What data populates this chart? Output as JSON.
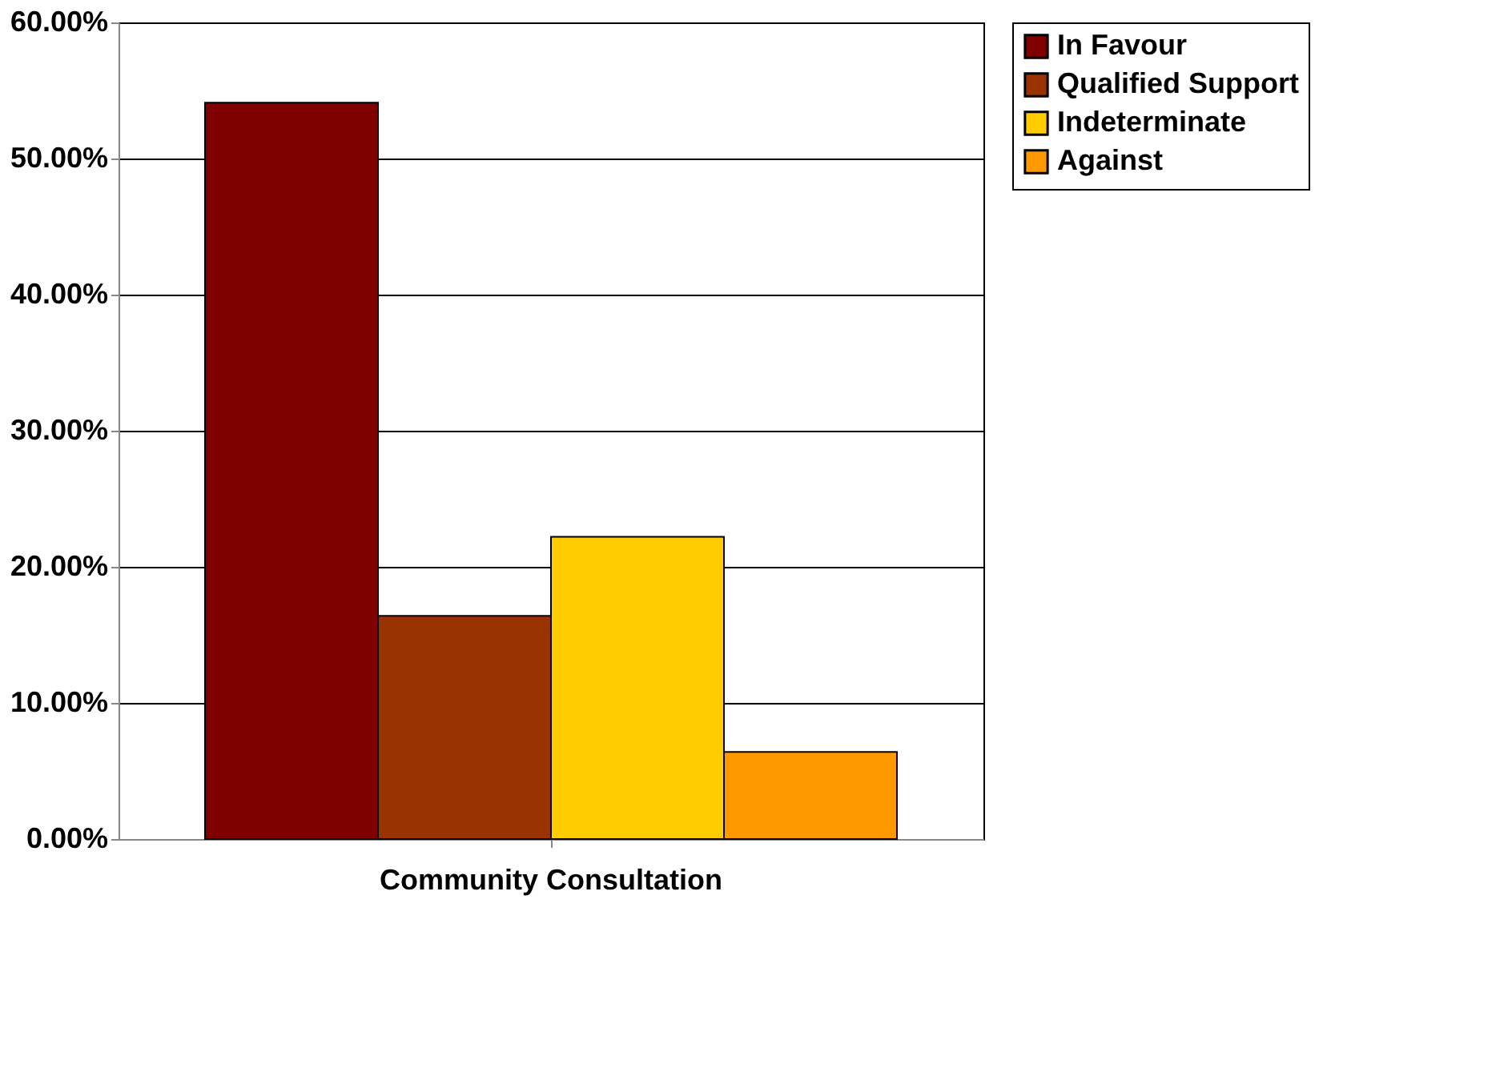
{
  "chart_data": {
    "type": "bar",
    "categories": [
      "Community Consultation"
    ],
    "series": [
      {
        "name": "In Favour",
        "color": "#800000",
        "values": [
          54.1
        ]
      },
      {
        "name": "Qualified Support",
        "color": "#993300",
        "values": [
          16.4
        ]
      },
      {
        "name": "Indeterminate",
        "color": "#ffcc00",
        "values": [
          22.2
        ]
      },
      {
        "name": "Against",
        "color": "#ff9900",
        "values": [
          6.4
        ]
      }
    ],
    "ylim": [
      0,
      60
    ],
    "yticks": [
      {
        "value": 0,
        "label": "0.00%"
      },
      {
        "value": 10,
        "label": "10.00%"
      },
      {
        "value": 20,
        "label": "20.00%"
      },
      {
        "value": 30,
        "label": "30.00%"
      },
      {
        "value": 40,
        "label": "40.00%"
      },
      {
        "value": 50,
        "label": "50.00%"
      },
      {
        "value": 60,
        "label": "60.00%"
      }
    ],
    "grid": "y",
    "legend": "right"
  }
}
